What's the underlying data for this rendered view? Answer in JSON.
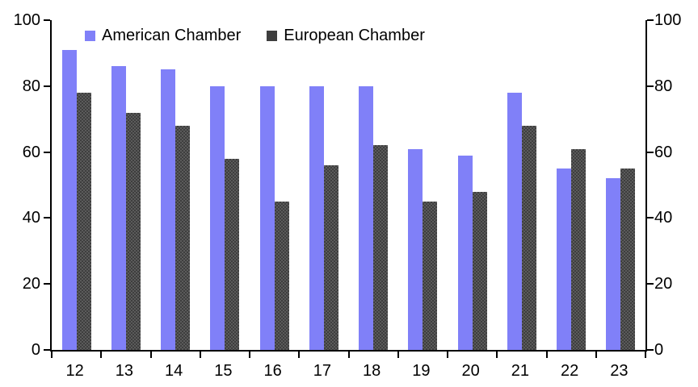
{
  "chart_data": {
    "type": "bar",
    "title": "",
    "xlabel": "",
    "ylabel": "",
    "categories": [
      "12",
      "13",
      "14",
      "15",
      "16",
      "17",
      "18",
      "19",
      "20",
      "21",
      "22",
      "23"
    ],
    "series": [
      {
        "name": "American Chamber",
        "color": "#8080f8",
        "pattern": "solid",
        "values": [
          91,
          86,
          85,
          80,
          80,
          80,
          80,
          61,
          59,
          78,
          55,
          52
        ]
      },
      {
        "name": "European Chamber",
        "color": "#3e3e3e",
        "pattern": "dots",
        "values": [
          78,
          72,
          68,
          58,
          45,
          56,
          62,
          45,
          48,
          68,
          61,
          55
        ]
      }
    ],
    "ylim": [
      0,
      100
    ],
    "yticks": [
      0,
      20,
      40,
      60,
      80,
      100
    ],
    "yticks_right": [
      0,
      20,
      40,
      60,
      80,
      100
    ],
    "grid": false,
    "legend_position": "top-inside",
    "axis_color": "#000000",
    "background_color": "#ffffff"
  }
}
